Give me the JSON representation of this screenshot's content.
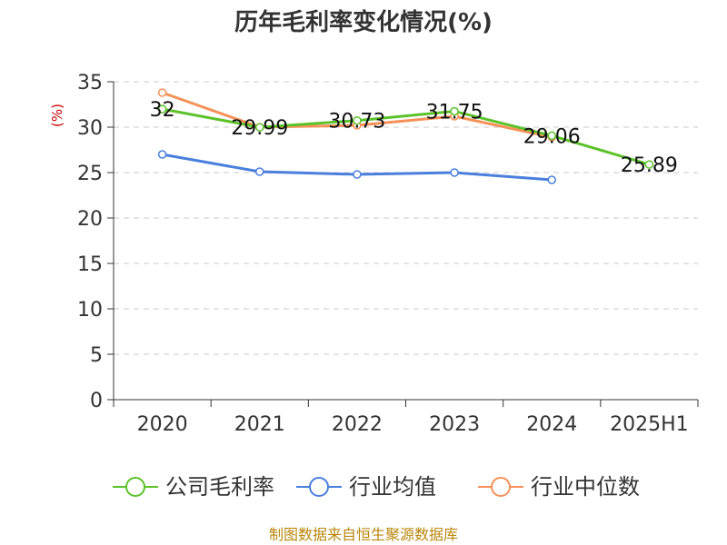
{
  "chart_data": {
    "type": "line",
    "title": "历年毛利率变化情况(%)",
    "ylabel": "(%)",
    "xlabel": "",
    "categories": [
      "2020",
      "2021",
      "2022",
      "2023",
      "2024",
      "2025H1"
    ],
    "ylim": [
      0,
      35
    ],
    "yticks": [
      0,
      5,
      10,
      15,
      20,
      25,
      30,
      35
    ],
    "grid": true,
    "legend_position": "bottom",
    "series": [
      {
        "name": "公司毛利率",
        "color": "#5cc22a",
        "values": [
          32,
          29.99,
          30.73,
          31.75,
          29.06,
          25.89
        ],
        "labels": [
          "32",
          "29.99",
          "30.73",
          "31.75",
          "29.06",
          "25.89"
        ]
      },
      {
        "name": "行业均值",
        "color": "#4a7fdd",
        "values": [
          27.0,
          25.1,
          24.8,
          25.0,
          24.2,
          null
        ],
        "labels": []
      },
      {
        "name": "行业中位数",
        "color": "#f59158",
        "values": [
          33.8,
          30.0,
          30.2,
          31.2,
          28.9,
          null
        ],
        "labels": []
      }
    ]
  },
  "source_text": "制图数据来自恒生聚源数据库"
}
